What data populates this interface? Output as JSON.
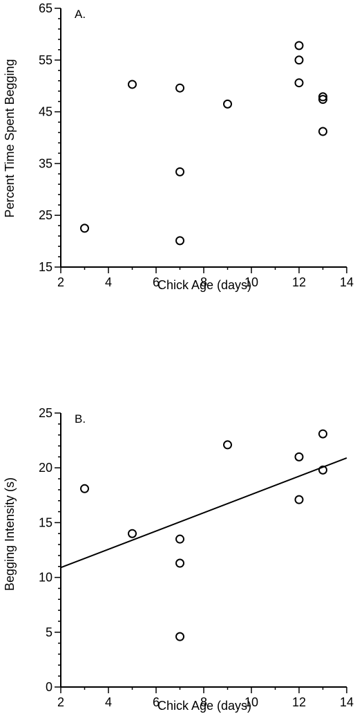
{
  "chart_data": [
    {
      "type": "scatter",
      "panel_label": "A.",
      "xlabel": "Chick Age (days)",
      "ylabel": "Percent Time Spent Begging",
      "xlim": [
        2,
        14
      ],
      "ylim": [
        15,
        65
      ],
      "xticks": [
        2,
        4,
        6,
        8,
        10,
        12,
        14
      ],
      "yticks": [
        15,
        25,
        35,
        45,
        55,
        65
      ],
      "points": [
        {
          "x": 3,
          "y": 22.5
        },
        {
          "x": 5,
          "y": 50.3
        },
        {
          "x": 7,
          "y": 49.6
        },
        {
          "x": 7,
          "y": 33.4
        },
        {
          "x": 7,
          "y": 20.1
        },
        {
          "x": 9,
          "y": 46.5
        },
        {
          "x": 12,
          "y": 57.8
        },
        {
          "x": 12,
          "y": 55.0
        },
        {
          "x": 12,
          "y": 50.6
        },
        {
          "x": 13,
          "y": 47.9
        },
        {
          "x": 13,
          "y": 47.4
        },
        {
          "x": 13,
          "y": 41.2
        }
      ],
      "grid": false
    },
    {
      "type": "scatter",
      "panel_label": "B.",
      "xlabel": "Chick Age (days)",
      "ylabel": "Begging Intensity (s)",
      "xlim": [
        2,
        14
      ],
      "ylim": [
        0,
        25
      ],
      "xticks": [
        2,
        4,
        6,
        8,
        10,
        12,
        14
      ],
      "yticks": [
        0,
        5,
        10,
        15,
        20,
        25
      ],
      "points": [
        {
          "x": 3,
          "y": 18.1
        },
        {
          "x": 5,
          "y": 14.0
        },
        {
          "x": 7,
          "y": 13.5
        },
        {
          "x": 7,
          "y": 11.3
        },
        {
          "x": 7,
          "y": 4.6
        },
        {
          "x": 9,
          "y": 22.1
        },
        {
          "x": 12,
          "y": 21.0
        },
        {
          "x": 12,
          "y": 17.1
        },
        {
          "x": 13,
          "y": 23.1
        },
        {
          "x": 13,
          "y": 19.8
        }
      ],
      "fit_line": {
        "x": [
          2,
          14
        ],
        "y": [
          10.9,
          20.9
        ]
      },
      "grid": false
    }
  ]
}
